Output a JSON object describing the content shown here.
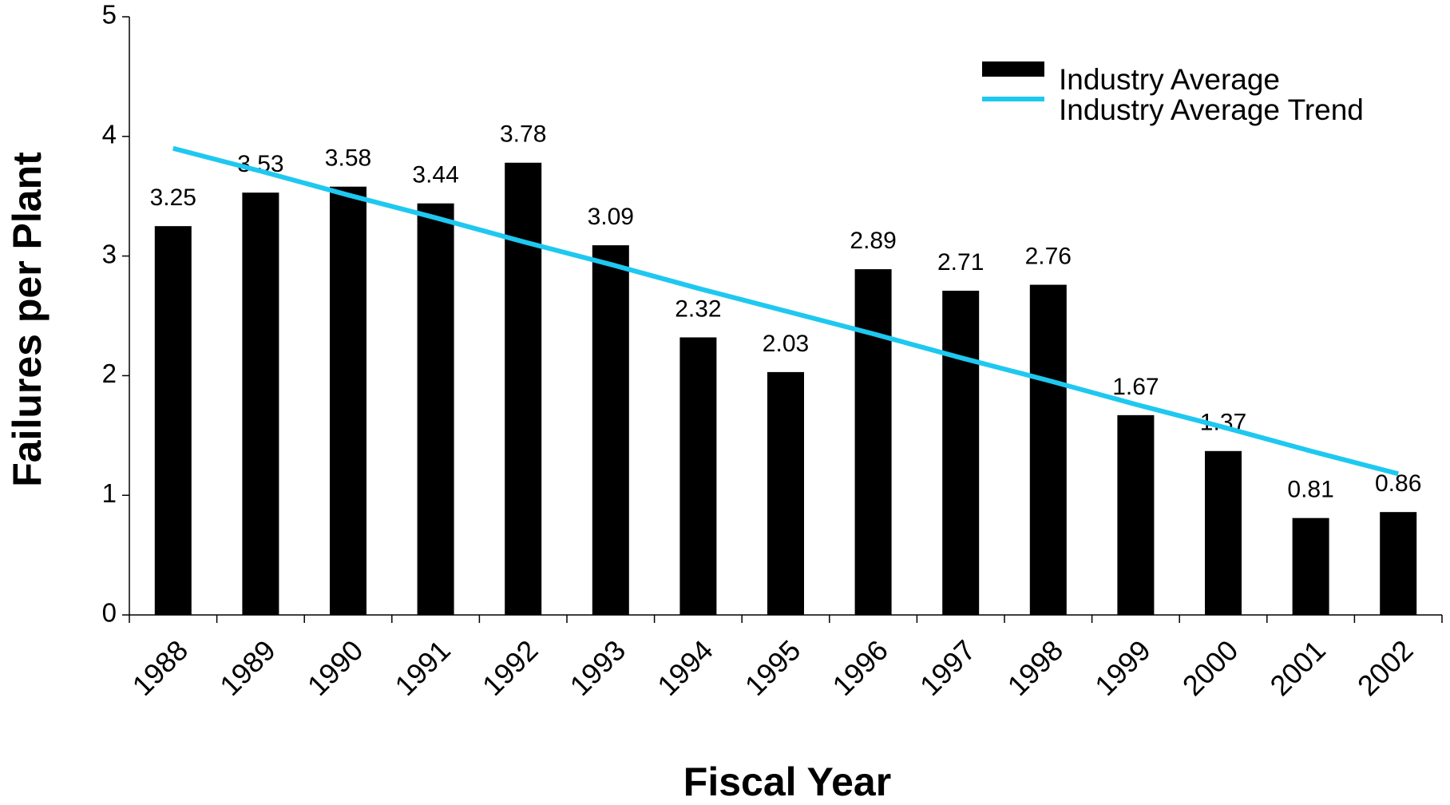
{
  "chart_data": {
    "type": "bar",
    "x_label": "Fiscal Year",
    "y_label": "Failures per Plant",
    "categories": [
      "1988",
      "1989",
      "1990",
      "1991",
      "1992",
      "1993",
      "1994",
      "1995",
      "1996",
      "1997",
      "1998",
      "1999",
      "2000",
      "2001",
      "2002"
    ],
    "series": [
      {
        "name": "Industry Average",
        "type": "bar",
        "color": "#000000",
        "values": [
          3.25,
          3.53,
          3.58,
          3.44,
          3.78,
          3.09,
          2.32,
          2.03,
          2.89,
          2.71,
          2.76,
          1.67,
          1.37,
          0.81,
          0.86
        ]
      },
      {
        "name": "Industry Average Trend",
        "type": "line",
        "color": "#1ec8f0",
        "values": [
          3.9,
          3.71,
          3.51,
          3.32,
          3.12,
          2.93,
          2.73,
          2.54,
          2.35,
          2.15,
          1.96,
          1.76,
          1.57,
          1.37,
          1.18
        ]
      }
    ],
    "ylim": [
      0,
      5
    ],
    "yticks": [
      0,
      1,
      2,
      3,
      4,
      5
    ],
    "grid": false,
    "legend": "upper right"
  }
}
